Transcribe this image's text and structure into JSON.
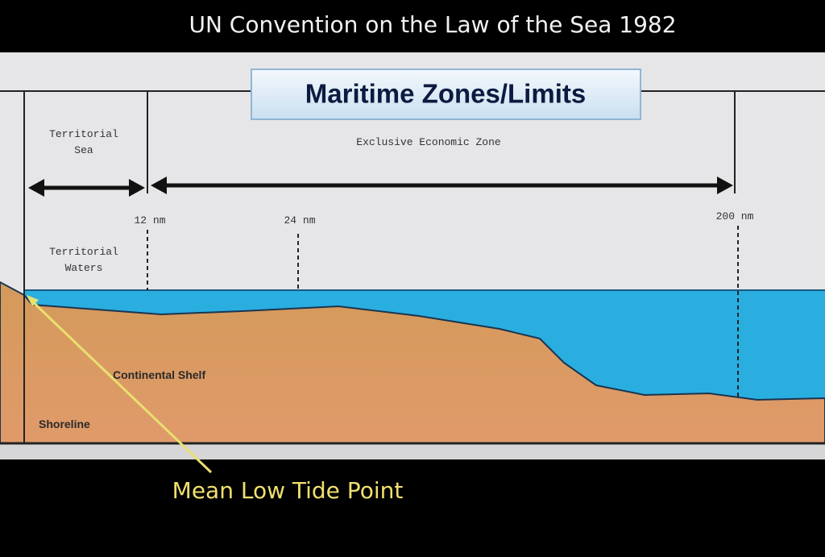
{
  "header": {
    "title": "UN Convention on the Law of the Sea 1982"
  },
  "diagram": {
    "title": "Maritime Zones/Limits",
    "zones": {
      "territorial_sea": [
        "Territorial",
        "Sea"
      ],
      "eez": "Exclusive Economic Zone"
    },
    "limits": [
      "12 nm",
      "24 nm",
      "200 nm"
    ],
    "territorial_waters": [
      "Territorial",
      "Waters"
    ],
    "continental_shelf": "Continental Shelf",
    "shoreline": "Shoreline"
  },
  "annotation": "Mean Low Tide Point"
}
